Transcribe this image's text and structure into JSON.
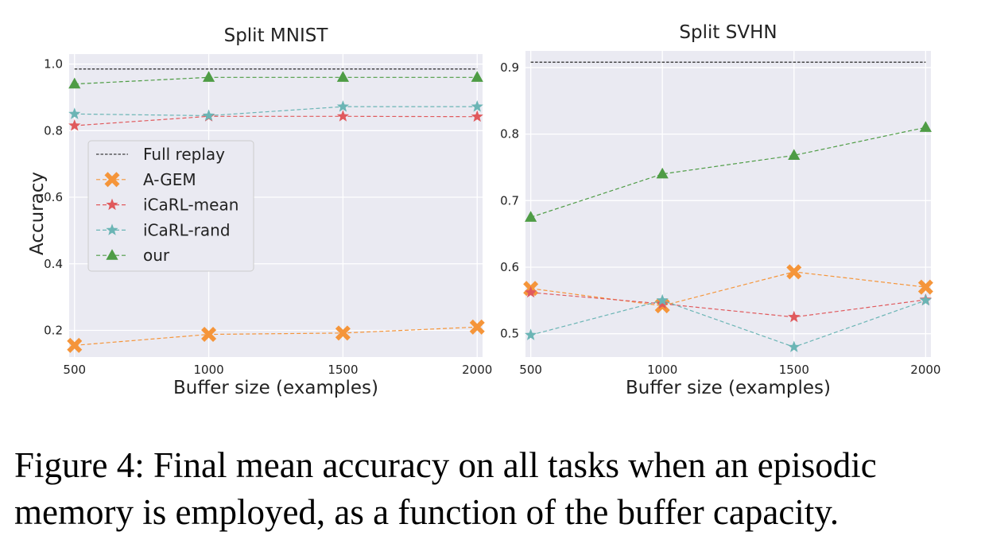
{
  "chart_data": [
    {
      "type": "line",
      "title": "Split MNIST",
      "xlabel": "Buffer size (examples)",
      "ylabel": "Accuracy",
      "x": [
        500,
        1000,
        1500,
        2000
      ],
      "xticks": [
        "500",
        "1000",
        "1500",
        "2000"
      ],
      "yticks": [
        "0.2",
        "0.4",
        "0.6",
        "0.8",
        "1.0"
      ],
      "xlim": [
        480,
        2020
      ],
      "ylim": [
        0.12,
        1.03
      ],
      "grid": true,
      "legend_position": "center-left",
      "reference_line": {
        "name": "Full replay",
        "value": 0.985
      },
      "series": [
        {
          "name": "A-GEM",
          "marker": "cross",
          "color": "#f5953a",
          "values": [
            0.155,
            0.188,
            0.192,
            0.21
          ]
        },
        {
          "name": "iCaRL-mean",
          "marker": "star",
          "color": "#e05a5d",
          "values": [
            0.815,
            0.843,
            0.843,
            0.842
          ]
        },
        {
          "name": "iCaRL-rand",
          "marker": "star",
          "color": "#6bb5b5",
          "values": [
            0.85,
            0.845,
            0.872,
            0.872
          ]
        },
        {
          "name": "our",
          "marker": "triangle",
          "color": "#4e9c45",
          "values": [
            0.94,
            0.96,
            0.96,
            0.96
          ]
        }
      ]
    },
    {
      "type": "line",
      "title": "Split SVHN",
      "xlabel": "Buffer size (examples)",
      "ylabel": "",
      "x": [
        500,
        1000,
        1500,
        2000
      ],
      "xticks": [
        "500",
        "1000",
        "1500",
        "2000"
      ],
      "yticks": [
        "0.5",
        "0.6",
        "0.7",
        "0.8",
        "0.9"
      ],
      "xlim": [
        480,
        2020
      ],
      "ylim": [
        0.465,
        0.925
      ],
      "grid": true,
      "legend_position": "none",
      "reference_line": {
        "name": "Full replay",
        "value": 0.908
      },
      "series": [
        {
          "name": "A-GEM",
          "marker": "cross",
          "color": "#f5953a",
          "values": [
            0.568,
            0.542,
            0.593,
            0.57
          ]
        },
        {
          "name": "iCaRL-mean",
          "marker": "star",
          "color": "#e05a5d",
          "values": [
            0.562,
            0.545,
            0.525,
            0.551
          ]
        },
        {
          "name": "iCaRL-rand",
          "marker": "star",
          "color": "#6bb5b5",
          "values": [
            0.498,
            0.55,
            0.48,
            0.55
          ]
        },
        {
          "name": "our",
          "marker": "triangle",
          "color": "#4e9c45",
          "values": [
            0.675,
            0.74,
            0.768,
            0.81
          ]
        }
      ]
    }
  ],
  "caption": "Figure 4: Final mean accuracy on all tasks when an episodic memory is employed, as a function of the buffer capacity."
}
